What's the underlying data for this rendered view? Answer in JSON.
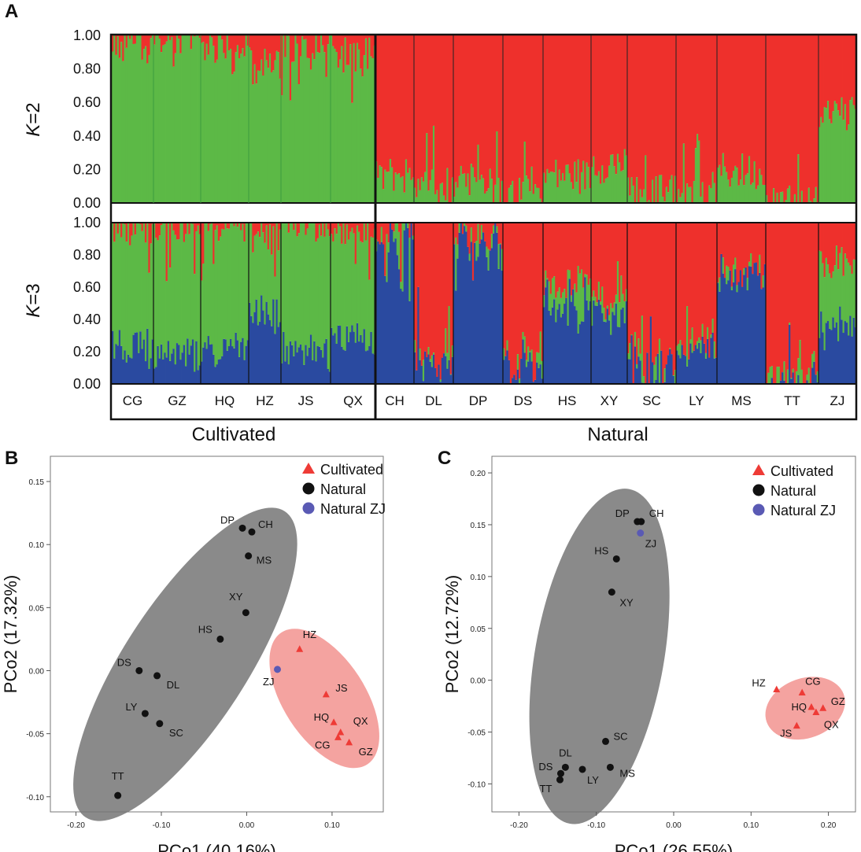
{
  "panel_labels": {
    "a": "A",
    "b": "B",
    "c": "C"
  },
  "colors": {
    "red": "#ee302c",
    "green": "#5cb946",
    "blue": "#2a4aa0",
    "cult_marker": "#ee3b36",
    "nat_marker": "#111111",
    "zj_marker": "#5a5ab4",
    "nat_ellipse": "#8a8a8a",
    "cult_ellipse": "#f4a3a0"
  },
  "chart_data": [
    {
      "type": "bar",
      "subtype": "structure-stacked",
      "panel": "A",
      "k_label_italic": "K",
      "k_label_value": "=2",
      "ytick_labels": [
        "1.00",
        "0.80",
        "0.60",
        "0.40",
        "0.20",
        "0.00"
      ],
      "ylim": [
        0,
        1
      ],
      "populations": [
        "CG",
        "GZ",
        "HQ",
        "HZ",
        "JS",
        "QX",
        "CH",
        "DL",
        "DP",
        "DS",
        "HS",
        "XY",
        "SC",
        "LY",
        "MS",
        "TT",
        "ZJ"
      ],
      "group_labels": [
        "Cultivated",
        "Natural"
      ],
      "series": [
        {
          "name": "Cluster 1 (green)",
          "color": "green",
          "mean_per_population": [
            0.93,
            0.96,
            0.94,
            0.82,
            0.95,
            0.9,
            0.17,
            0.1,
            0.12,
            0.05,
            0.17,
            0.23,
            0.06,
            0.03,
            0.19,
            0.0,
            0.55
          ]
        },
        {
          "name": "Cluster 2 (red)",
          "color": "red",
          "mean_per_population": [
            0.07,
            0.04,
            0.06,
            0.18,
            0.05,
            0.1,
            0.83,
            0.9,
            0.88,
            0.95,
            0.83,
            0.77,
            0.94,
            0.97,
            0.81,
            1.0,
            0.45
          ]
        }
      ]
    },
    {
      "type": "bar",
      "subtype": "structure-stacked",
      "panel": "A",
      "k_label_italic": "K",
      "k_label_value": "=3",
      "ytick_labels": [
        "1.00",
        "0.80",
        "0.60",
        "0.40",
        "0.20",
        "0.00"
      ],
      "ylim": [
        0,
        1
      ],
      "populations": [
        "CG",
        "GZ",
        "HQ",
        "HZ",
        "JS",
        "QX",
        "CH",
        "DL",
        "DP",
        "DS",
        "HS",
        "XY",
        "SC",
        "LY",
        "MS",
        "TT",
        "ZJ"
      ],
      "series": [
        {
          "name": "Cluster 1 (blue)",
          "color": "blue",
          "mean_per_population": [
            0.25,
            0.2,
            0.22,
            0.45,
            0.2,
            0.28,
            0.97,
            0.12,
            0.95,
            0.1,
            0.5,
            0.45,
            0.08,
            0.25,
            0.7,
            0.0,
            0.35
          ]
        },
        {
          "name": "Cluster 2 (green)",
          "color": "green",
          "mean_per_population": [
            0.73,
            0.78,
            0.76,
            0.47,
            0.78,
            0.7,
            0.0,
            0.0,
            0.0,
            0.0,
            0.1,
            0.1,
            0.05,
            0.0,
            0.0,
            0.0,
            0.4
          ]
        },
        {
          "name": "Cluster 3 (red)",
          "color": "red",
          "mean_per_population": [
            0.02,
            0.02,
            0.02,
            0.08,
            0.02,
            0.02,
            0.03,
            0.88,
            0.05,
            0.9,
            0.4,
            0.45,
            0.87,
            0.75,
            0.3,
            1.0,
            0.25
          ]
        }
      ]
    },
    {
      "type": "scatter",
      "panel": "B",
      "xlabel": "PCo1 (40.16%)",
      "ylabel": "PCo2 (17.32%)",
      "xlim": [
        -0.23,
        0.16
      ],
      "ylim": [
        -0.112,
        0.17
      ],
      "xticks": [
        -0.2,
        -0.1,
        0.0,
        0.1
      ],
      "xtick_labels": [
        "-0.20",
        "-0.10",
        "0.00",
        "0.10"
      ],
      "yticks": [
        0.15,
        0.1,
        0.05,
        0.0,
        -0.05,
        -0.1
      ],
      "ytick_labels": [
        "0.15",
        "0.10",
        "0.05",
        "0.00",
        "-0.05",
        "-0.10"
      ],
      "legend": [
        {
          "label": "Cultivated",
          "marker": "triangle",
          "color": "cult_marker"
        },
        {
          "label": "Natural",
          "marker": "circle",
          "color": "nat_marker"
        },
        {
          "label": "Natural ZJ",
          "marker": "circle",
          "color": "zj_marker"
        }
      ],
      "points": [
        {
          "label": "DP",
          "x": -0.005,
          "y": 0.113,
          "group": "natural"
        },
        {
          "label": "CH",
          "x": 0.006,
          "y": 0.11,
          "group": "natural"
        },
        {
          "label": "MS",
          "x": 0.002,
          "y": 0.091,
          "group": "natural"
        },
        {
          "label": "XY",
          "x": -0.001,
          "y": 0.046,
          "group": "natural"
        },
        {
          "label": "HS",
          "x": -0.031,
          "y": 0.025,
          "group": "natural"
        },
        {
          "label": "DS",
          "x": -0.126,
          "y": 0.0,
          "group": "natural"
        },
        {
          "label": "DL",
          "x": -0.105,
          "y": -0.004,
          "group": "natural"
        },
        {
          "label": "LY",
          "x": -0.119,
          "y": -0.034,
          "group": "natural"
        },
        {
          "label": "SC",
          "x": -0.102,
          "y": -0.042,
          "group": "natural"
        },
        {
          "label": "TT",
          "x": -0.151,
          "y": -0.099,
          "group": "natural"
        },
        {
          "label": "ZJ",
          "x": 0.036,
          "y": 0.001,
          "group": "natural_zj"
        },
        {
          "label": "HZ",
          "x": 0.062,
          "y": 0.017,
          "group": "cultivated"
        },
        {
          "label": "JS",
          "x": 0.093,
          "y": -0.019,
          "group": "cultivated"
        },
        {
          "label": "HQ",
          "x": 0.102,
          "y": -0.041,
          "group": "cultivated"
        },
        {
          "label": "QX",
          "x": 0.11,
          "y": -0.049,
          "group": "cultivated"
        },
        {
          "label": "CG",
          "x": 0.107,
          "y": -0.053,
          "group": "cultivated"
        },
        {
          "label": "GZ",
          "x": 0.12,
          "y": -0.057,
          "group": "cultivated"
        }
      ]
    },
    {
      "type": "scatter",
      "panel": "C",
      "xlabel": "PCo1 (26.55%)",
      "ylabel": "PCo2 (12.72%)",
      "xlim": [
        -0.235,
        0.235
      ],
      "ylim": [
        -0.127,
        0.216
      ],
      "xticks": [
        -0.2,
        -0.1,
        0.0,
        0.1,
        0.2
      ],
      "xtick_labels": [
        "-0.20",
        "-0.10",
        "0.00",
        "0.10",
        "0.20"
      ],
      "yticks": [
        0.2,
        0.15,
        0.1,
        0.05,
        0.0,
        -0.05,
        -0.1
      ],
      "ytick_labels": [
        "0.20",
        "0.15",
        "0.10",
        "0.05",
        "0.00",
        "-0.05",
        "-0.10"
      ],
      "legend": [
        {
          "label": "Cultivated",
          "marker": "triangle",
          "color": "cult_marker"
        },
        {
          "label": "Natural",
          "marker": "circle",
          "color": "nat_marker"
        },
        {
          "label": "Natural ZJ",
          "marker": "circle",
          "color": "zj_marker"
        }
      ],
      "points": [
        {
          "label": "DP",
          "x": -0.047,
          "y": 0.153,
          "group": "natural"
        },
        {
          "label": "CH",
          "x": -0.042,
          "y": 0.153,
          "group": "natural"
        },
        {
          "label": "ZJ",
          "x": -0.043,
          "y": 0.142,
          "group": "natural_zj"
        },
        {
          "label": "HS",
          "x": -0.074,
          "y": 0.117,
          "group": "natural"
        },
        {
          "label": "XY",
          "x": -0.08,
          "y": 0.085,
          "group": "natural"
        },
        {
          "label": "SC",
          "x": -0.088,
          "y": -0.059,
          "group": "natural"
        },
        {
          "label": "MS",
          "x": -0.082,
          "y": -0.084,
          "group": "natural"
        },
        {
          "label": "DL",
          "x": -0.14,
          "y": -0.084,
          "group": "natural"
        },
        {
          "label": "LY",
          "x": -0.118,
          "y": -0.086,
          "group": "natural"
        },
        {
          "label": "DS",
          "x": -0.146,
          "y": -0.09,
          "group": "natural"
        },
        {
          "label": "TT",
          "x": -0.147,
          "y": -0.096,
          "group": "natural"
        },
        {
          "label": "HZ",
          "x": 0.133,
          "y": -0.009,
          "group": "cultivated"
        },
        {
          "label": "CG",
          "x": 0.166,
          "y": -0.012,
          "group": "cultivated"
        },
        {
          "label": "GZ",
          "x": 0.193,
          "y": -0.027,
          "group": "cultivated"
        },
        {
          "label": "HQ",
          "x": 0.178,
          "y": -0.026,
          "group": "cultivated"
        },
        {
          "label": "QX",
          "x": 0.184,
          "y": -0.031,
          "group": "cultivated"
        },
        {
          "label": "JS",
          "x": 0.159,
          "y": -0.044,
          "group": "cultivated"
        }
      ]
    }
  ]
}
